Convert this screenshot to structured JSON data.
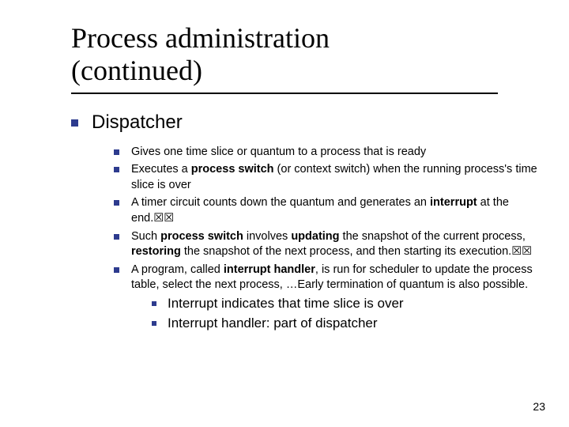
{
  "colors": {
    "bullet": "#2d3b8e",
    "text": "#000000",
    "background": "#ffffff"
  },
  "typography": {
    "title_family": "Times New Roman",
    "body_family": "Verdana",
    "title_fontsize": 36,
    "lvl1_fontsize": 24,
    "lvl2_fontsize": 14.5,
    "lvl3_fontsize": 17
  },
  "title": {
    "line1": "Process administration",
    "line2": "(continued)"
  },
  "lvl1_label": "Dispatcher",
  "b": {
    "0": {
      "plain": "Gives one time slice or quantum to a process that is ready"
    },
    "1": {
      "pre": "Executes a ",
      "bold": "process switch",
      "post": " (or context switch) when the running process's time slice is over"
    },
    "2": {
      "pre": "A timer circuit counts down the quantum and generates an ",
      "bold": "interrupt",
      "post": " at the end.",
      "boxes": "☒☒"
    },
    "3": {
      "a": "Such ",
      "b": "process switch",
      "c": " involves ",
      "d": "updating",
      "e": " the snapshot of the current process, ",
      "f": "restoring",
      "g": " the snapshot of the next process, and then starting its execution.",
      "boxes": "☒☒"
    },
    "4": {
      "pre": "A program, called ",
      "bold": "interrupt handler",
      "post": ", is run for scheduler to update the process table, select the next process, …Early termination of quantum is also possible."
    }
  },
  "sub": {
    "0": "Interrupt indicates that time slice is over",
    "1": "Interrupt handler: part of dispatcher"
  },
  "page_number": "23"
}
